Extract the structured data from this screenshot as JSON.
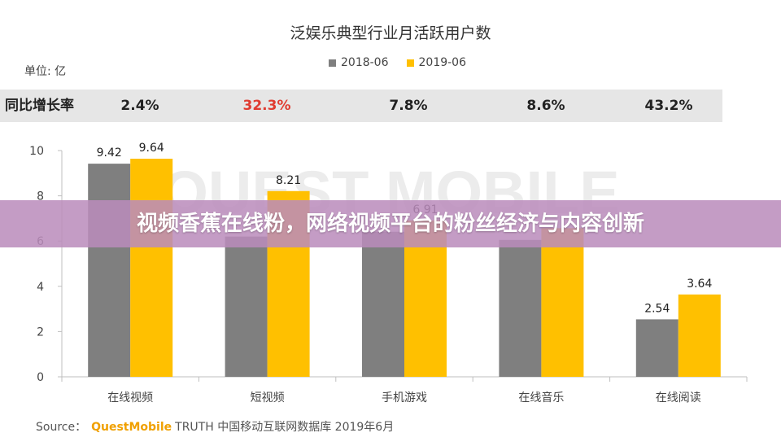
{
  "chart_data": {
    "type": "bar",
    "title": "泛娱乐典型行业月活跃用户数",
    "unit_label": "单位: 亿",
    "categories": [
      "在线视频",
      "短视频",
      "手机游戏",
      "在线音乐",
      "在线阅读"
    ],
    "series": [
      {
        "name": "2018-06",
        "color": "#7f7f7f",
        "values": [
          9.42,
          6.2,
          6.41,
          6.05,
          2.54
        ],
        "labels": [
          "9.42",
          "",
          "",
          "",
          "2.54"
        ]
      },
      {
        "name": "2019-06",
        "color": "#ffc000",
        "values": [
          9.64,
          8.21,
          6.91,
          6.57,
          3.64
        ],
        "labels": [
          "9.64",
          "8.21",
          "6.91",
          "",
          "3.64"
        ]
      }
    ],
    "ylim": [
      0,
      10
    ],
    "yticks": [
      "0",
      "2",
      "4",
      "6",
      "8",
      "10"
    ],
    "grid": false,
    "legend_position": "top-center"
  },
  "yoy": {
    "title": "同比增长率",
    "values": [
      "2.4%",
      "32.3%",
      "7.8%",
      "8.6%",
      "43.2%"
    ],
    "highlight_index": 1,
    "highlight_color": "#e03c31"
  },
  "overlay": {
    "text": "视频香蕉在线粉，网络视频平台的粉丝经济与内容创新"
  },
  "source": {
    "label": "Source：",
    "brand": "QuestMobile",
    "rest": "TRUTH 中国移动互联网数据库 2019年6月"
  },
  "watermark": "QUEST MOBILE"
}
